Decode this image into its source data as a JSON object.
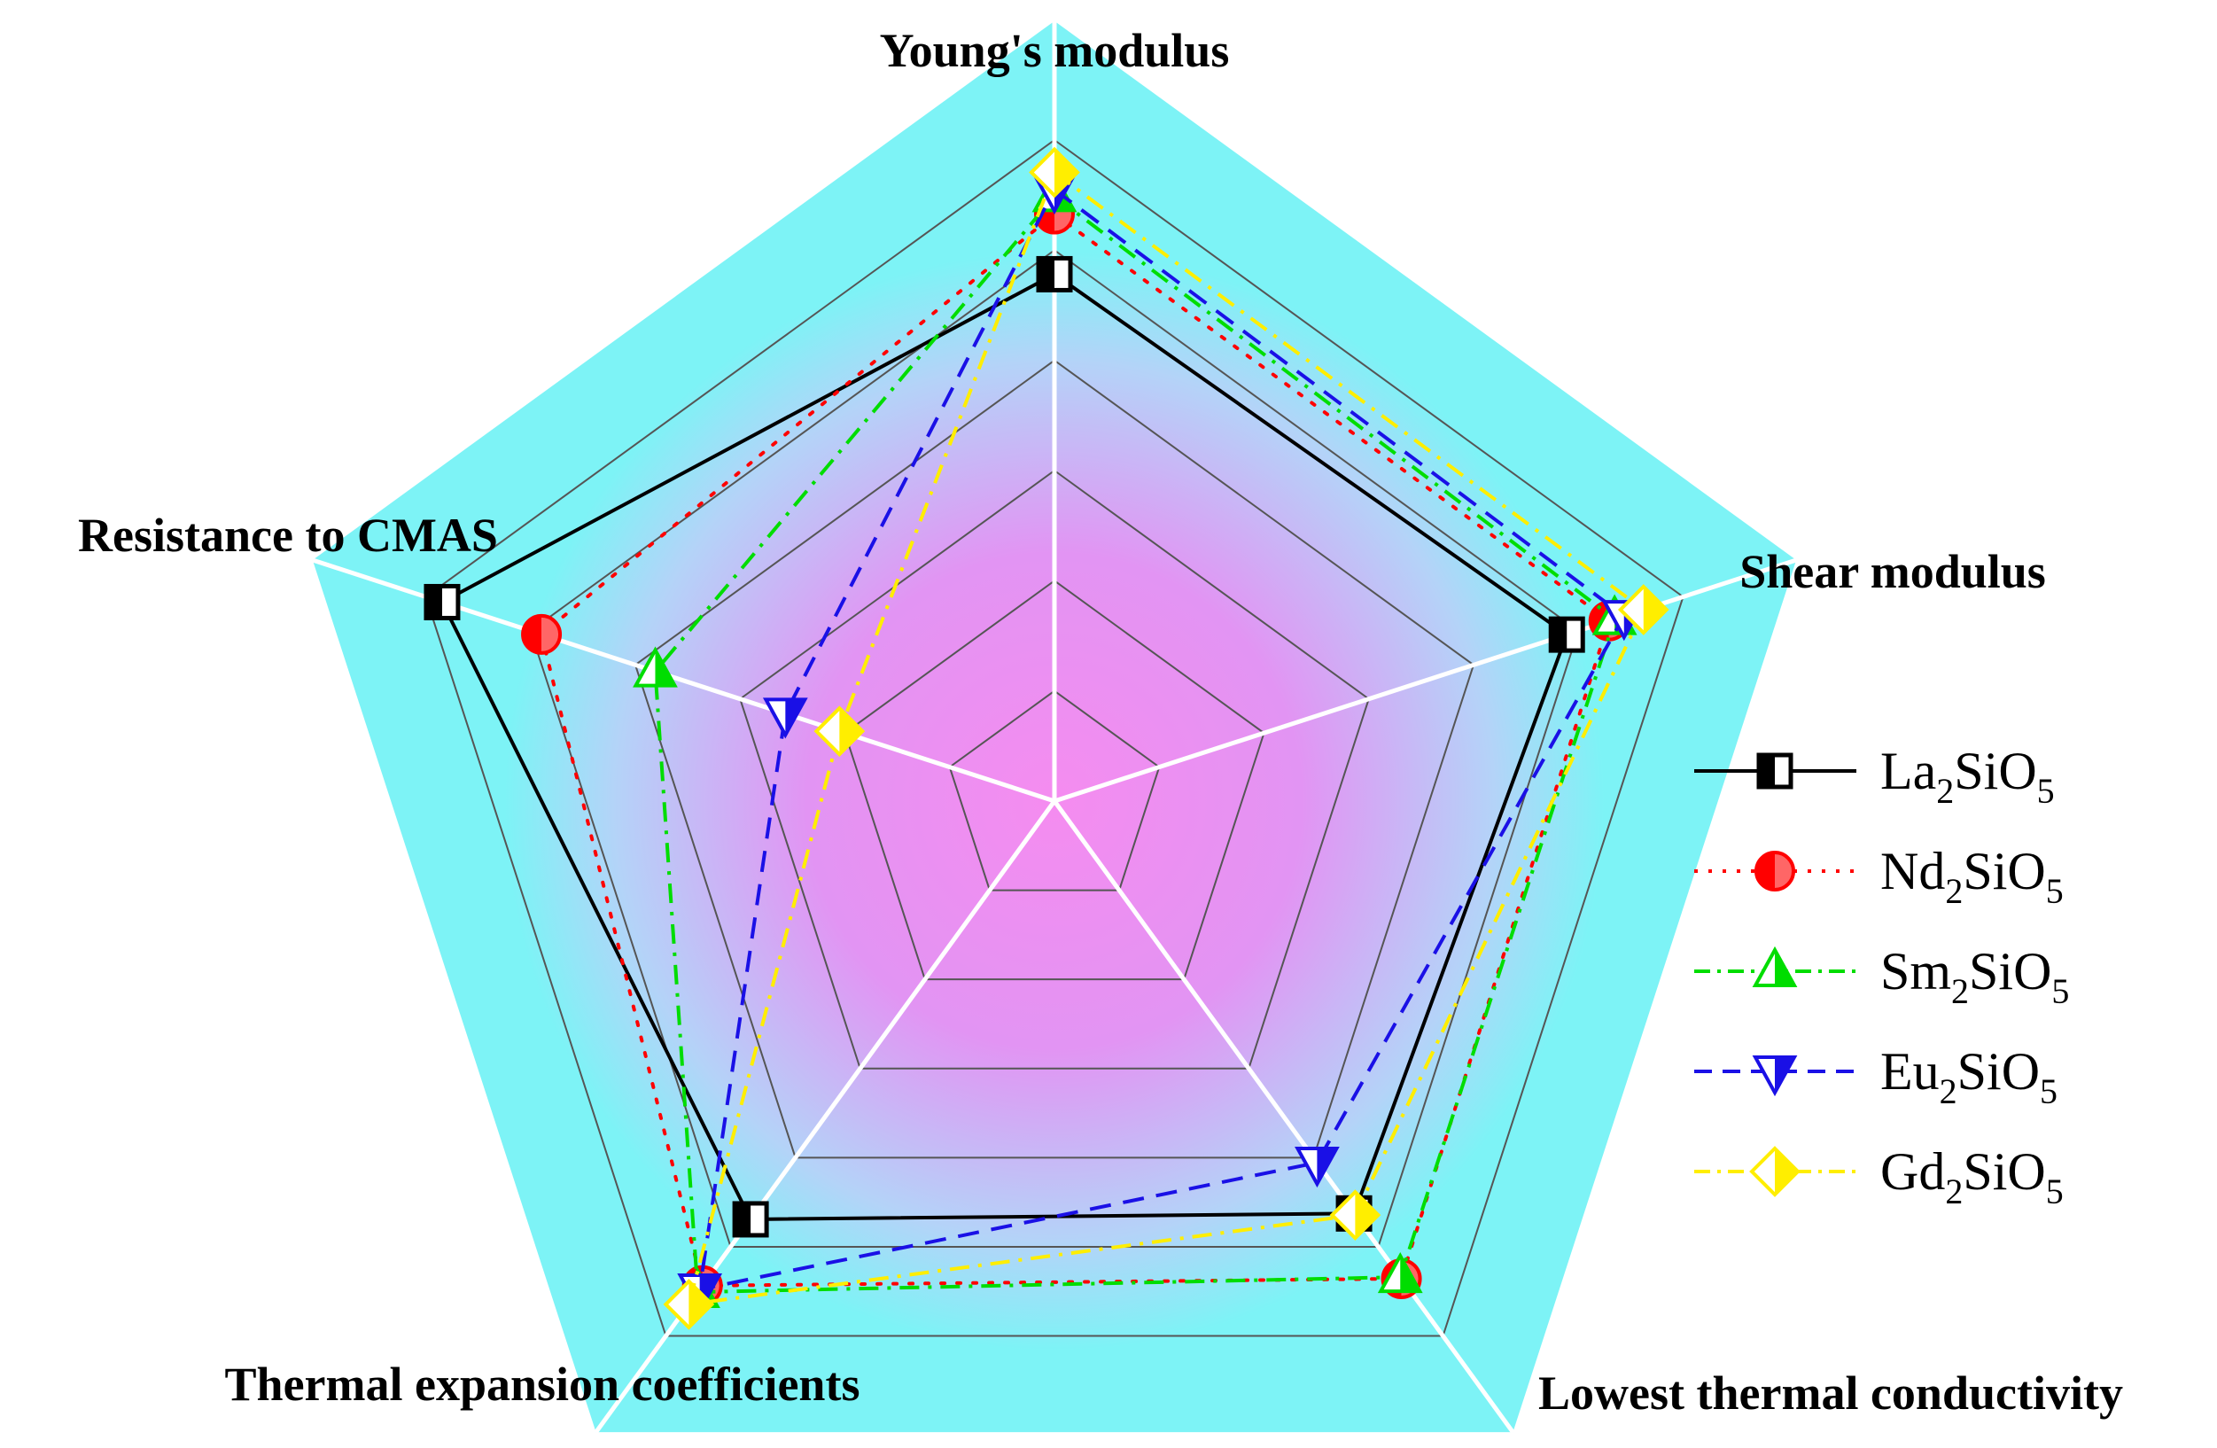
{
  "chart_data": {
    "type": "radar",
    "axes": [
      "Young's modulus",
      "Shear modulus",
      "Lowest thermal conductivity",
      "Thermal expansion coefficients",
      "Resistance to CMAS"
    ],
    "r_range": [
      0,
      1
    ],
    "grid_levels": 6,
    "series": [
      {
        "name": "La2SiO5",
        "formula": [
          "La",
          "2",
          "SiO",
          "5"
        ],
        "color": "#000000",
        "line": "solid",
        "marker": "square",
        "values": [
          0.797,
          0.815,
          0.771,
          0.782,
          0.974
        ]
      },
      {
        "name": "Nd2SiO5",
        "formula": [
          "Nd",
          "2",
          "SiO",
          "5"
        ],
        "color": "#ff0000",
        "line": "dotted",
        "marker": "circle",
        "values": [
          0.888,
          0.882,
          0.893,
          0.906,
          0.816
        ]
      },
      {
        "name": "Sm2SiO5",
        "formula": [
          "Sm",
          "2",
          "SiO",
          "5"
        ],
        "color": "#00dd00",
        "line": "dashdot",
        "marker": "triangle-up",
        "values": [
          0.915,
          0.891,
          0.89,
          0.918,
          0.635
        ]
      },
      {
        "name": "Eu2SiO5",
        "formula": [
          "Eu",
          "2",
          "SiO",
          "5"
        ],
        "color": "#1a10e6",
        "line": "dashed",
        "marker": "triangle-down",
        "values": [
          0.925,
          0.906,
          0.676,
          0.913,
          0.428
        ]
      },
      {
        "name": "Gd2SiO5",
        "formula": [
          "Gd",
          "2",
          "SiO",
          "5"
        ],
        "color": "#ffee00",
        "line": "dashdot",
        "marker": "diamond",
        "values": [
          0.951,
          0.937,
          0.774,
          0.941,
          0.342
        ]
      }
    ],
    "legend_position": "right",
    "background": {
      "outer": "#7df3f6",
      "inner": "#f58cf0"
    }
  }
}
